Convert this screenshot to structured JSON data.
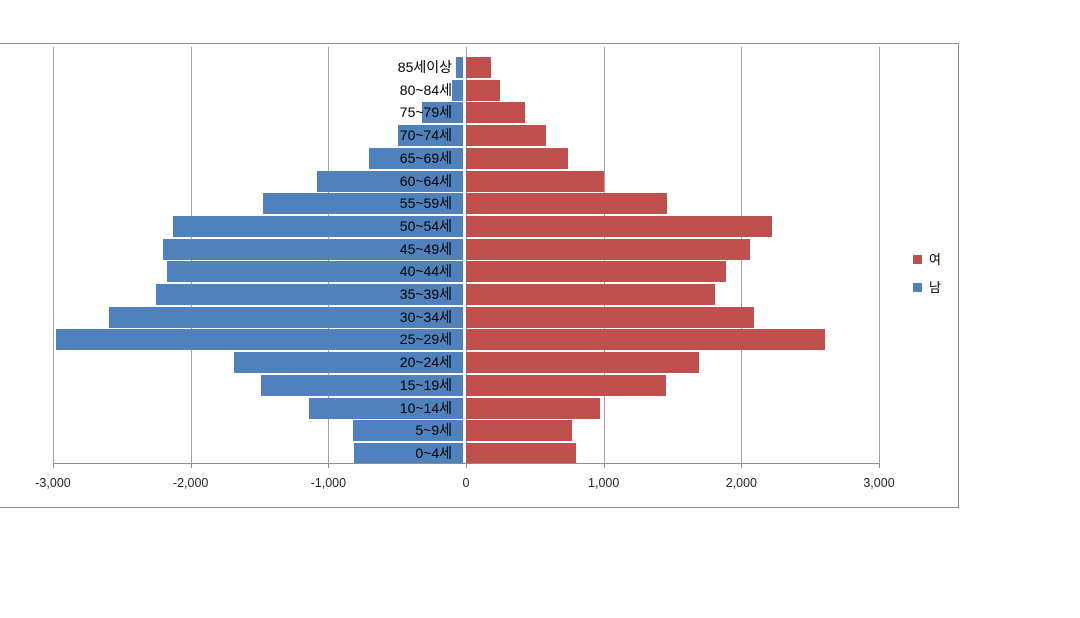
{
  "chart_data": {
    "type": "bar",
    "subtype": "population_pyramid",
    "orientation": "horizontal",
    "title": "",
    "grid": true,
    "legend_position": "right",
    "categories_top_to_bottom": [
      "85세이상",
      "80~84세",
      "75~79세",
      "70~74세",
      "65~69세",
      "60~64세",
      "55~59세",
      "50~54세",
      "45~49세",
      "40~44세",
      "35~39세",
      "30~34세",
      "25~29세",
      "20~24세",
      "15~19세",
      "10~14세",
      "5~9세",
      "0~4세"
    ],
    "series": [
      {
        "name": "남",
        "color": "#4F81BD",
        "axis_side": "negative",
        "plotted_values": [
          -50,
          -80,
          -300,
          -470,
          -680,
          -1060,
          -1450,
          -2110,
          -2180,
          -2150,
          -2230,
          -2570,
          -2960,
          -1660,
          -1470,
          -1120,
          -800,
          -790
        ]
      },
      {
        "name": "여",
        "color": "#C0504D",
        "axis_side": "positive",
        "plotted_values": [
          180,
          250,
          430,
          580,
          740,
          1000,
          1460,
          2220,
          2060,
          1890,
          1810,
          2090,
          2610,
          1690,
          1450,
          970,
          770,
          800
        ]
      }
    ],
    "x_axis": {
      "min": -3000,
      "max": 3000,
      "tick_values": [
        -3000,
        -2000,
        -1000,
        0,
        1000,
        2000,
        3000
      ],
      "tick_labels": [
        "-3,000",
        "-2,000",
        "-1,000",
        "0",
        "1,000",
        "2,000",
        "3,000"
      ]
    }
  },
  "legend": {
    "items": [
      {
        "label": "여",
        "color": "#C0504D"
      },
      {
        "label": "남",
        "color": "#4F81BD"
      }
    ]
  },
  "colors": {
    "male_bar": "#4F81BD",
    "female_bar": "#C0504D",
    "gridline": "#A3A3A3",
    "chart_border": "#8C8C8C",
    "background": "#FFFFFF"
  }
}
